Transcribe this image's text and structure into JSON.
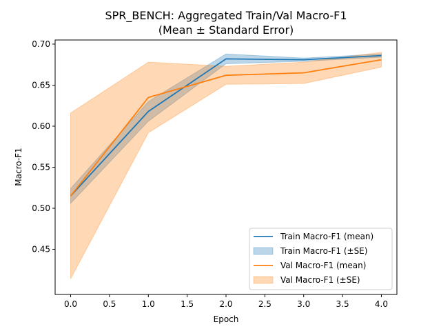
{
  "chart_data": {
    "type": "line",
    "title": "SPR_BENCH: Aggregated Train/Val Macro-F1",
    "subtitle": "(Mean ± Standard Error)",
    "xlabel": "Epoch",
    "ylabel": "Macro-F1",
    "xlim": [
      -0.2,
      4.2
    ],
    "ylim": [
      0.395,
      0.705
    ],
    "xticks": [
      0.0,
      0.5,
      1.0,
      1.5,
      2.0,
      2.5,
      3.0,
      3.5,
      4.0
    ],
    "xtick_labels": [
      "0.0",
      "0.5",
      "1.0",
      "1.5",
      "2.0",
      "2.5",
      "3.0",
      "3.5",
      "4.0"
    ],
    "yticks": [
      0.45,
      0.5,
      0.55,
      0.6,
      0.65,
      0.7
    ],
    "ytick_labels": [
      "0.45",
      "0.50",
      "0.55",
      "0.60",
      "0.65",
      "0.70"
    ],
    "grid": false,
    "legend_position": "lower-right",
    "x": [
      0,
      1,
      2,
      3,
      4
    ],
    "series": [
      {
        "name": "Train Macro-F1 (mean)",
        "band_name": "Train Macro-F1 (±SE)",
        "color": "#1f77b4",
        "values": [
          0.515,
          0.618,
          0.682,
          0.681,
          0.686
        ],
        "lower": [
          0.506,
          0.606,
          0.676,
          0.679,
          0.684
        ],
        "upper": [
          0.524,
          0.63,
          0.688,
          0.683,
          0.688
        ]
      },
      {
        "name": "Val Macro-F1 (mean)",
        "band_name": "Val Macro-F1 (±SE)",
        "color": "#ff7f0e",
        "values": [
          0.515,
          0.635,
          0.662,
          0.665,
          0.681
        ],
        "lower": [
          0.414,
          0.592,
          0.651,
          0.652,
          0.672
        ],
        "upper": [
          0.616,
          0.678,
          0.673,
          0.678,
          0.69
        ]
      }
    ]
  }
}
